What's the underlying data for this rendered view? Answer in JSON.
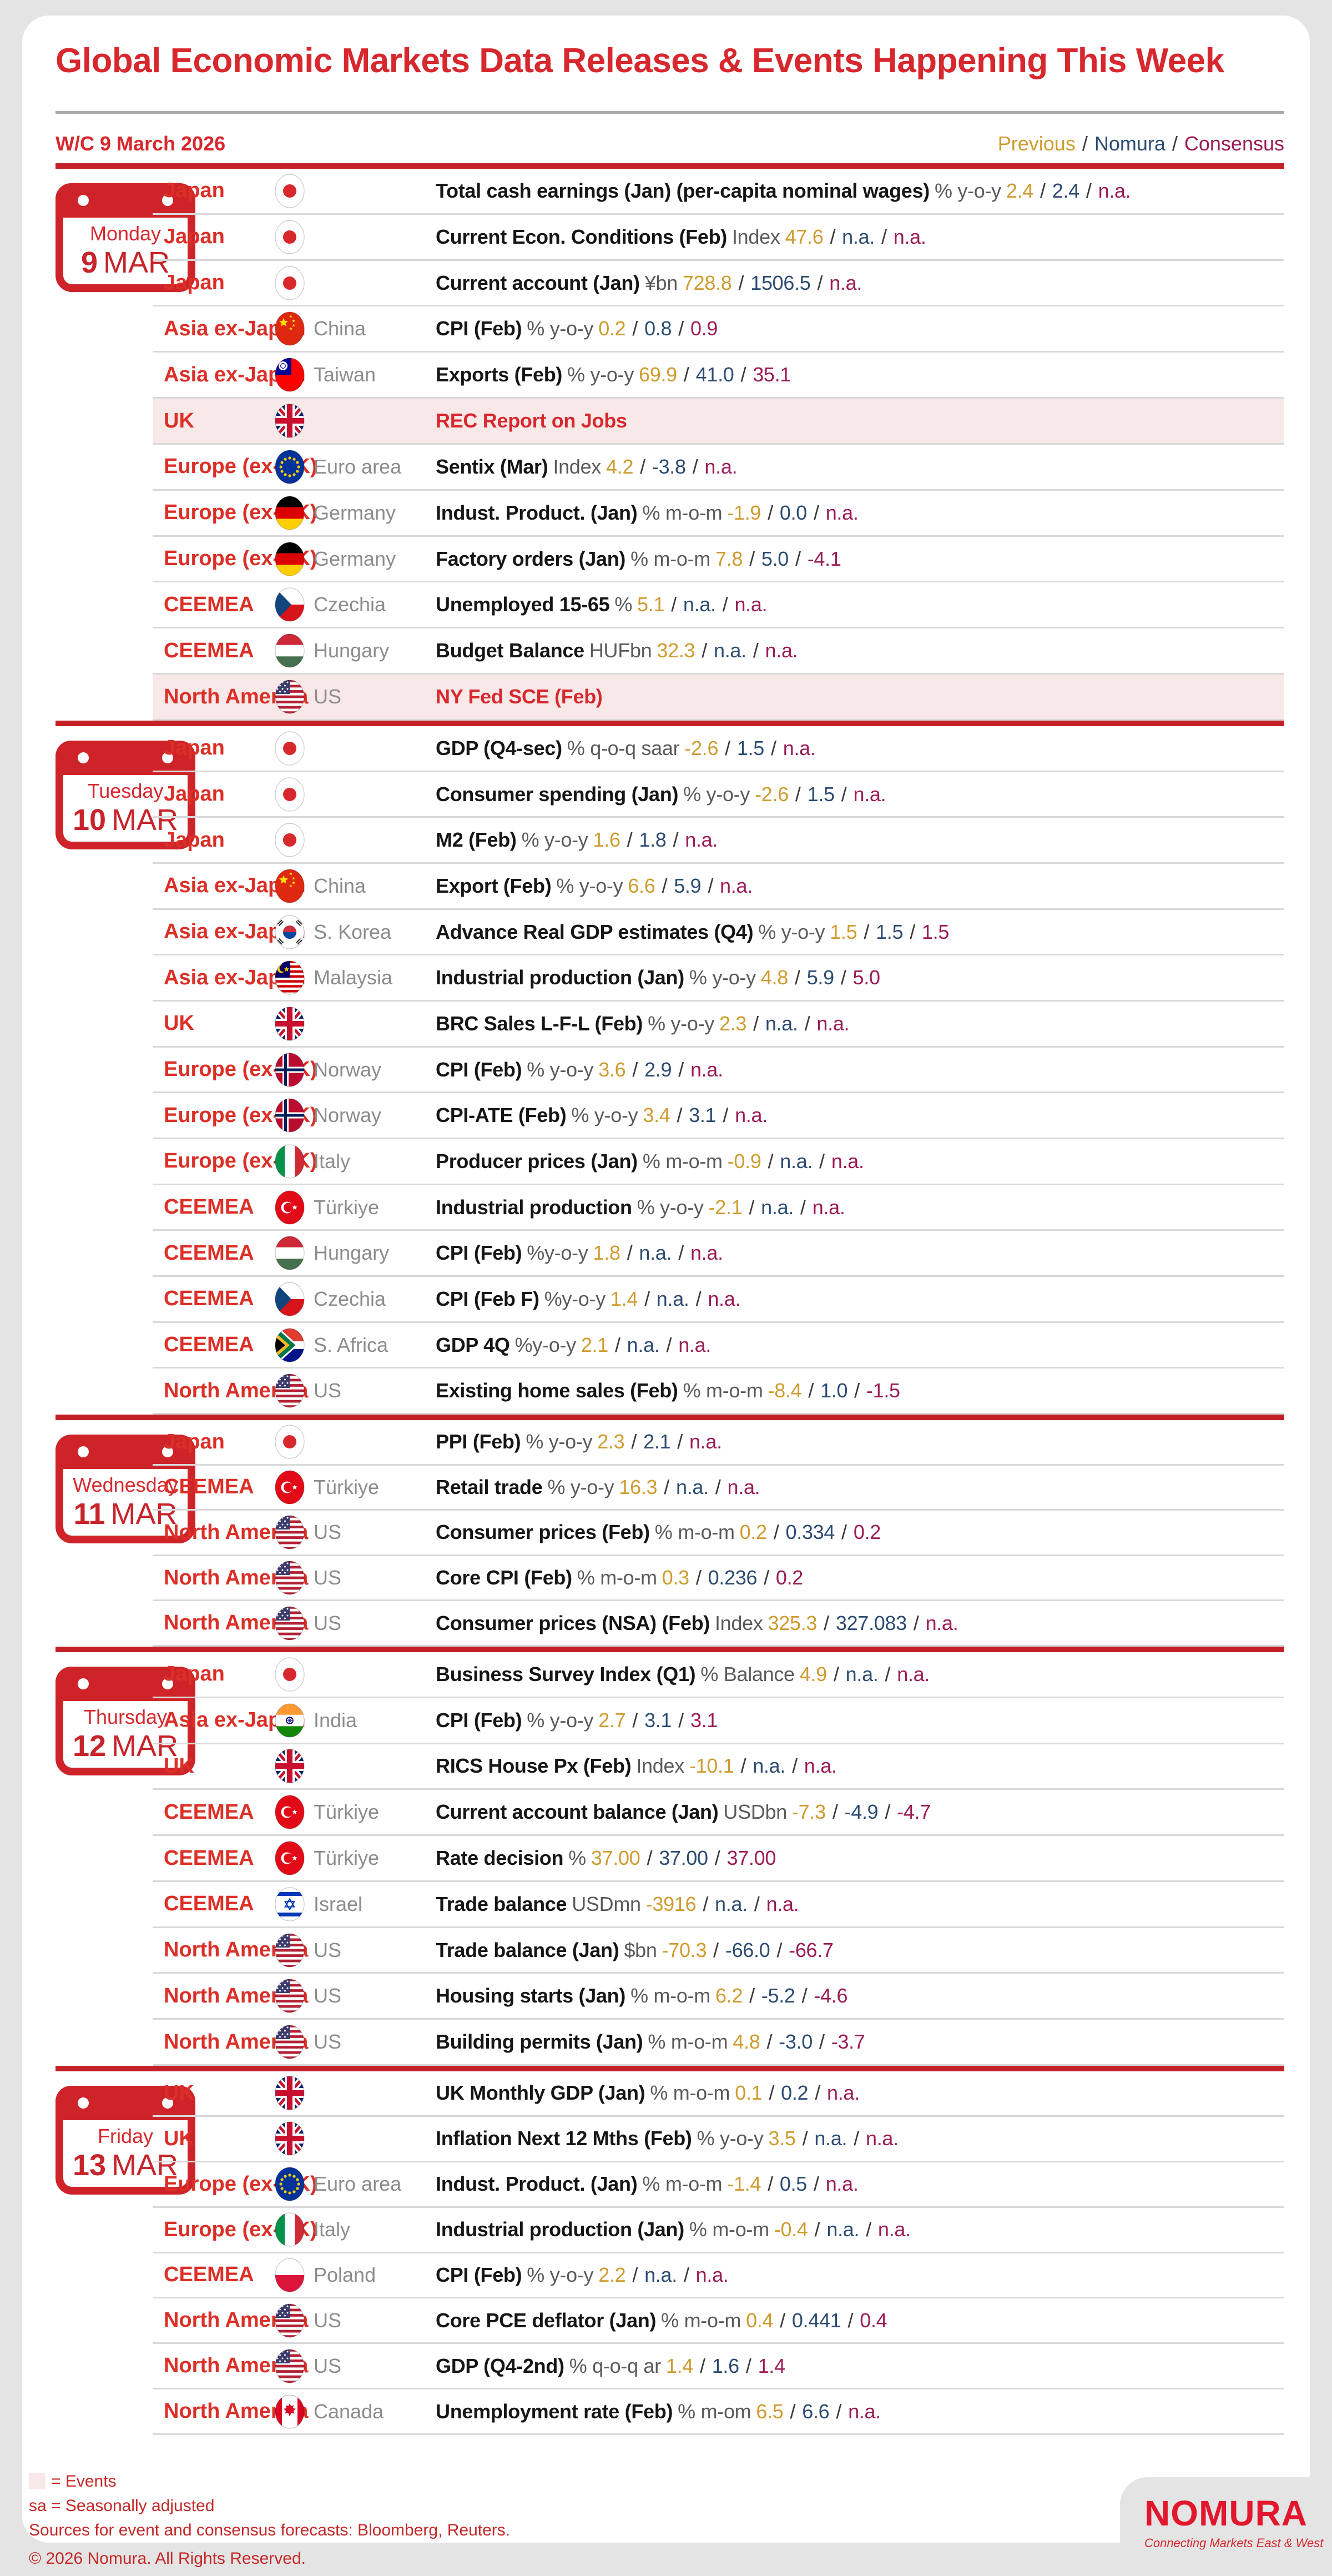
{
  "header": {
    "title": "Global Economic Markets Data Releases & Events Happening This Week",
    "week_label": "W/C 9 March 2026",
    "values_legend": {
      "previous": "Previous",
      "nomura": "Nomura",
      "consensus": "Consensus"
    }
  },
  "colors": {
    "brand_red": "#D7282E",
    "divider_red": "#C32127",
    "previous_gold": "#CF9B2F",
    "nomura_navy": "#2C4B72",
    "consensus_maroon": "#9B1B55",
    "highlight_pink": "#F9E8E8"
  },
  "days": [
    {
      "name": "Monday",
      "date_num": "9",
      "date_month": "MAR",
      "rows": [
        {
          "region": "Japan",
          "flag": "japan",
          "country": "",
          "event": "Total cash earnings (Jan) (per-capita nominal wages)",
          "unit": "% y-o-y",
          "prev": "2.4",
          "nomura": "2.4",
          "cons": "n.a."
        },
        {
          "region": "Japan",
          "flag": "japan",
          "country": "",
          "event": "Current Econ. Conditions (Feb)",
          "unit": "Index",
          "prev": "47.6",
          "nomura": "n.a.",
          "cons": "n.a."
        },
        {
          "region": "Japan",
          "flag": "japan",
          "country": "",
          "event": "Current account (Jan)",
          "unit": "¥bn",
          "prev": "728.8",
          "nomura": "1506.5",
          "cons": "n.a."
        },
        {
          "region": "Asia ex-Japan",
          "flag": "china",
          "country": "China",
          "event": "CPI (Feb)",
          "unit": "% y-o-y",
          "prev": "0.2",
          "nomura": "0.8",
          "cons": "0.9"
        },
        {
          "region": "Asia ex-Japan",
          "flag": "taiwan",
          "country": "Taiwan",
          "event": "Exports (Feb)",
          "unit": "% y-o-y",
          "prev": "69.9",
          "nomura": "41.0",
          "cons": "35.1"
        },
        {
          "region": "UK",
          "flag": "uk",
          "country": "",
          "event": "REC Report on Jobs",
          "highlight": true
        },
        {
          "region": "Europe (ex-UK)",
          "flag": "euroarea",
          "country": "Euro area",
          "event": "Sentix (Mar)",
          "unit": "Index",
          "prev": "4.2",
          "nomura": "-3.8",
          "cons": "n.a."
        },
        {
          "region": "Europe (ex-UK)",
          "flag": "germany",
          "country": "Germany",
          "event": "Indust. Product. (Jan)",
          "unit": "% m-o-m",
          "prev": "-1.9",
          "nomura": "0.0",
          "cons": "n.a."
        },
        {
          "region": "Europe (ex-UK)",
          "flag": "germany",
          "country": "Germany",
          "event": "Factory orders (Jan)",
          "unit": "% m-o-m",
          "prev": "7.8",
          "nomura": "5.0",
          "cons": "-4.1"
        },
        {
          "region": "CEEMEA",
          "flag": "czechia",
          "country": "Czechia",
          "event": "Unemployed 15-65",
          "unit": "%",
          "prev": "5.1",
          "nomura": "n.a.",
          "cons": "n.a."
        },
        {
          "region": "CEEMEA",
          "flag": "hungary",
          "country": "Hungary",
          "event": "Budget Balance",
          "unit": "HUFbn",
          "prev": "32.3",
          "nomura": "n.a.",
          "cons": "n.a."
        },
        {
          "region": "North America",
          "flag": "us",
          "country": "US",
          "event": "NY Fed SCE (Feb)",
          "highlight": true
        }
      ]
    },
    {
      "name": "Tuesday",
      "date_num": "10",
      "date_month": "MAR",
      "rows": [
        {
          "region": "Japan",
          "flag": "japan",
          "country": "",
          "event": "GDP (Q4-sec)",
          "unit": "% q-o-q saar",
          "prev": "-2.6",
          "nomura": "1.5",
          "cons": "n.a."
        },
        {
          "region": "Japan",
          "flag": "japan",
          "country": "",
          "event": "Consumer spending (Jan)",
          "unit": "% y-o-y",
          "prev": "-2.6",
          "nomura": "1.5",
          "cons": "n.a."
        },
        {
          "region": "Japan",
          "flag": "japan",
          "country": "",
          "event": "M2 (Feb)",
          "unit": "% y-o-y",
          "prev": "1.6",
          "nomura": "1.8",
          "cons": "n.a."
        },
        {
          "region": "Asia ex-Japan",
          "flag": "china",
          "country": "China",
          "event": "Export (Feb)",
          "unit": "% y-o-y",
          "prev": "6.6",
          "nomura": "5.9",
          "cons": "n.a."
        },
        {
          "region": "Asia ex-Japan",
          "flag": "skorea",
          "country": "S. Korea",
          "event": "Advance Real GDP estimates (Q4)",
          "unit": "% y-o-y",
          "prev": "1.5",
          "nomura": "1.5",
          "cons": "1.5"
        },
        {
          "region": "Asia ex-Japan",
          "flag": "malaysia",
          "country": "Malaysia",
          "event": "Industrial production (Jan)",
          "unit": "% y-o-y",
          "prev": "4.8",
          "nomura": "5.9",
          "cons": "5.0"
        },
        {
          "region": "UK",
          "flag": "uk",
          "country": "",
          "event": "BRC Sales L-F-L (Feb)",
          "unit": "% y-o-y",
          "prev": "2.3",
          "nomura": "n.a.",
          "cons": "n.a."
        },
        {
          "region": "Europe (ex-UK)",
          "flag": "norway",
          "country": "Norway",
          "event": "CPI (Feb)",
          "unit": "% y-o-y",
          "prev": "3.6",
          "nomura": "2.9",
          "cons": "n.a."
        },
        {
          "region": "Europe (ex-UK)",
          "flag": "norway",
          "country": "Norway",
          "event": "CPI-ATE (Feb)",
          "unit": "% y-o-y",
          "prev": "3.4",
          "nomura": "3.1",
          "cons": "n.a."
        },
        {
          "region": "Europe (ex-UK)",
          "flag": "italy",
          "country": "Italy",
          "event": "Producer prices (Jan)",
          "unit": "% m-o-m",
          "prev": "-0.9",
          "nomura": "n.a.",
          "cons": "n.a."
        },
        {
          "region": "CEEMEA",
          "flag": "turkiye",
          "country": "Türkiye",
          "event": "Industrial production",
          "unit": "% y-o-y",
          "prev": "-2.1",
          "nomura": "n.a.",
          "cons": "n.a."
        },
        {
          "region": "CEEMEA",
          "flag": "hungary",
          "country": "Hungary",
          "event": "CPI (Feb)",
          "unit": "%y-o-y",
          "prev": "1.8",
          "nomura": "n.a.",
          "cons": "n.a."
        },
        {
          "region": "CEEMEA",
          "flag": "czechia",
          "country": "Czechia",
          "event": "CPI (Feb F)",
          "unit": "%y-o-y",
          "prev": "1.4",
          "nomura": "n.a.",
          "cons": "n.a."
        },
        {
          "region": "CEEMEA",
          "flag": "safrica",
          "country": "S. Africa",
          "event": "GDP 4Q",
          "unit": "%y-o-y",
          "prev": "2.1",
          "nomura": "n.a.",
          "cons": "n.a."
        },
        {
          "region": "North America",
          "flag": "us",
          "country": "US",
          "event": "Existing home sales (Feb)",
          "unit": "% m-o-m",
          "prev": "-8.4",
          "nomura": "1.0",
          "cons": "-1.5"
        }
      ]
    },
    {
      "name": "Wednesday",
      "date_num": "11",
      "date_month": "MAR",
      "rows": [
        {
          "region": "Japan",
          "flag": "japan",
          "country": "",
          "event": "PPI (Feb)",
          "unit": "% y-o-y",
          "prev": "2.3",
          "nomura": "2.1",
          "cons": "n.a."
        },
        {
          "region": "CEEMEA",
          "flag": "turkiye",
          "country": "Türkiye",
          "event": "Retail trade",
          "unit": "% y-o-y",
          "prev": "16.3",
          "nomura": "n.a.",
          "cons": "n.a."
        },
        {
          "region": "North America",
          "flag": "us",
          "country": "US",
          "event": "Consumer prices (Feb)",
          "unit": "% m-o-m",
          "prev": "0.2",
          "nomura": "0.334",
          "cons": "0.2"
        },
        {
          "region": "North America",
          "flag": "us",
          "country": "US",
          "event": "Core CPI (Feb)",
          "unit": "% m-o-m",
          "prev": "0.3",
          "nomura": "0.236",
          "cons": "0.2"
        },
        {
          "region": "North America",
          "flag": "us",
          "country": "US",
          "event": "Consumer prices (NSA) (Feb)",
          "unit": "Index",
          "prev": "325.3",
          "nomura": "327.083",
          "cons": "n.a."
        }
      ]
    },
    {
      "name": "Thursday",
      "date_num": "12",
      "date_month": "MAR",
      "rows": [
        {
          "region": "Japan",
          "flag": "japan",
          "country": "",
          "event": "Business Survey Index (Q1)",
          "unit": "% Balance",
          "prev": "4.9",
          "nomura": "n.a.",
          "cons": "n.a."
        },
        {
          "region": "Asia ex-Japan",
          "flag": "india",
          "country": "India",
          "event": "CPI (Feb)",
          "unit": "% y-o-y",
          "prev": "2.7",
          "nomura": "3.1",
          "cons": "3.1"
        },
        {
          "region": "UK",
          "flag": "uk",
          "country": "",
          "event": "RICS House Px (Feb)",
          "unit": "Index",
          "prev": "-10.1",
          "nomura": "n.a.",
          "cons": "n.a."
        },
        {
          "region": "CEEMEA",
          "flag": "turkiye",
          "country": "Türkiye",
          "event": "Current account balance (Jan)",
          "unit": "USDbn",
          "prev": "-7.3",
          "nomura": "-4.9",
          "cons": "-4.7"
        },
        {
          "region": "CEEMEA",
          "flag": "turkiye",
          "country": "Türkiye",
          "event": "Rate decision",
          "unit": "%",
          "prev": "37.00",
          "nomura": "37.00",
          "cons": "37.00"
        },
        {
          "region": "CEEMEA",
          "flag": "israel",
          "country": "Israel",
          "event": "Trade balance",
          "unit": "USDmn",
          "prev": "-3916",
          "nomura": "n.a.",
          "cons": "n.a."
        },
        {
          "region": "North America",
          "flag": "us",
          "country": "US",
          "event": "Trade balance (Jan)",
          "unit": "$bn",
          "prev": "-70.3",
          "nomura": "-66.0",
          "cons": "-66.7"
        },
        {
          "region": "North America",
          "flag": "us",
          "country": "US",
          "event": "Housing starts (Jan)",
          "unit": "% m-o-m",
          "prev": "6.2",
          "nomura": "-5.2",
          "cons": "-4.6"
        },
        {
          "region": "North America",
          "flag": "us",
          "country": "US",
          "event": "Building permits (Jan)",
          "unit": "% m-o-m",
          "prev": "4.8",
          "nomura": "-3.0",
          "cons": "-3.7"
        }
      ]
    },
    {
      "name": "Friday",
      "date_num": "13",
      "date_month": "MAR",
      "rows": [
        {
          "region": "UK",
          "flag": "uk",
          "country": "",
          "event": "UK Monthly GDP (Jan)",
          "unit": "% m-o-m",
          "prev": "0.1",
          "nomura": "0.2",
          "cons": "n.a."
        },
        {
          "region": "UK",
          "flag": "uk",
          "country": "",
          "event": "Inflation Next 12 Mths (Feb)",
          "unit": "% y-o-y",
          "prev": "3.5",
          "nomura": "n.a.",
          "cons": "n.a."
        },
        {
          "region": "Europe (ex-UK)",
          "flag": "euroarea",
          "country": "Euro area",
          "event": "Indust. Product. (Jan)",
          "unit": "% m-o-m",
          "prev": "-1.4",
          "nomura": "0.5",
          "cons": "n.a."
        },
        {
          "region": "Europe (ex-UK)",
          "flag": "italy",
          "country": "Italy",
          "event": "Industrial production (Jan)",
          "unit": "% m-o-m",
          "prev": "-0.4",
          "nomura": "n.a.",
          "cons": "n.a."
        },
        {
          "region": "CEEMEA",
          "flag": "poland",
          "country": "Poland",
          "event": "CPI (Feb)",
          "unit": "% y-o-y",
          "prev": "2.2",
          "nomura": "n.a.",
          "cons": "n.a."
        },
        {
          "region": "North America",
          "flag": "us",
          "country": "US",
          "event": "Core PCE deflator (Jan)",
          "unit": "% m-o-m",
          "prev": "0.4",
          "nomura": "0.441",
          "cons": "0.4"
        },
        {
          "region": "North America",
          "flag": "us",
          "country": "US",
          "event": "GDP (Q4-2nd)",
          "unit": "% q-o-q ar",
          "prev": "1.4",
          "nomura": "1.6",
          "cons": "1.4"
        },
        {
          "region": "North America",
          "flag": "canada",
          "country": "Canada",
          "event": "Unemployment rate (Feb)",
          "unit": "% m-om",
          "prev": "6.5",
          "nomura": "6.6",
          "cons": "n.a."
        }
      ]
    }
  ],
  "footer": {
    "events_label": "= Events",
    "sa_label": "sa = Seasonally adjusted",
    "sources_label": "Sources for event and consensus forecasts: Bloomberg, Reuters.",
    "copyright": "© 2026 Nomura. All Rights Reserved.",
    "logo": "NOMURA",
    "tagline": "Connecting Markets East & West"
  }
}
